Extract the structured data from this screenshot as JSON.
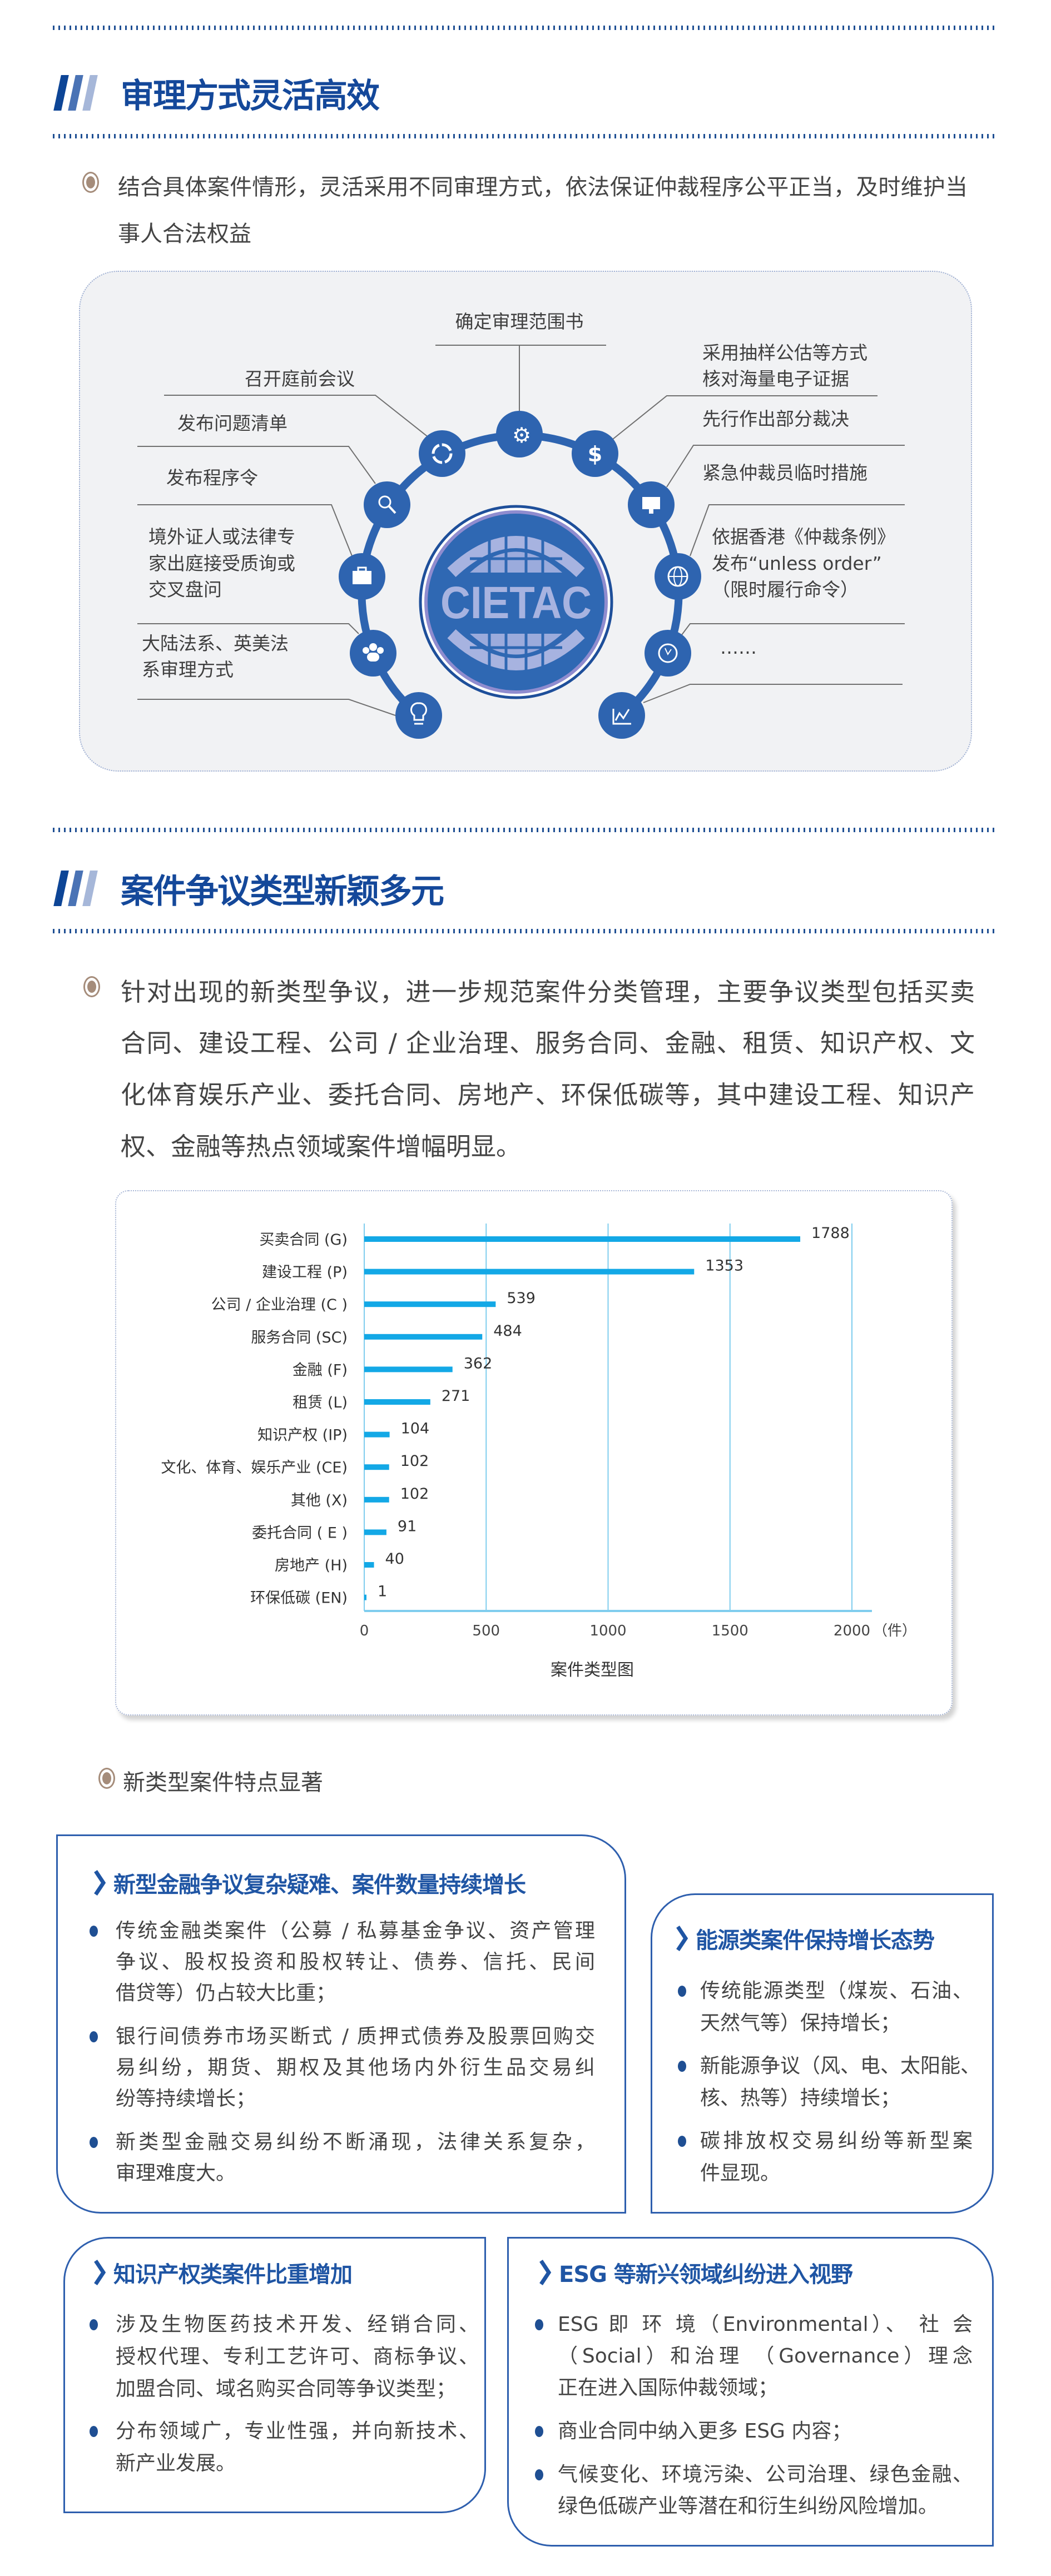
{
  "section1": {
    "title": "审理方式灵活高效",
    "paragraph_lines": [
      "结合具体案件情形，灵活采用不同审理方式，依法保证仲裁程序公平正当，及时维护当",
      "事人合法权益"
    ]
  },
  "diagram": {
    "center_logo": "CIETAC",
    "top_label": "确定审理范围书",
    "left_labels": [
      [
        "召开庭前会议"
      ],
      [
        "发布问题清单"
      ],
      [
        "发布程序令"
      ],
      [
        "境外证人或法律专",
        "家出庭接受质询或",
        "交叉盘问"
      ],
      [
        "大陆法系、英美法",
        "系审理方式"
      ]
    ],
    "right_labels": [
      [
        "采用抽样公估等方式",
        "核对海量电子证据"
      ],
      [
        "先行作出部分裁决"
      ],
      [
        "紧急仲裁员临时措施"
      ],
      [
        "依据香港《仲裁条例》",
        "发布“unless order”",
        "（限时履行命令）"
      ],
      [
        "……"
      ]
    ],
    "node_icons": [
      "lightbulb-icon",
      "people-icon",
      "briefcase-icon",
      "search-icon",
      "refresh-ring-icon",
      "gear-icon",
      "dollar-icon",
      "monitor-icon",
      "globe-icon",
      "clock-icon",
      "line-chart-icon"
    ],
    "colors": {
      "node": "#2e64b0",
      "logo_text": "#a7b3e0",
      "background": "#f1f2f4"
    }
  },
  "section2": {
    "title": "案件争议类型新颖多元",
    "paragraph_lines": [
      "针对出现的新类型争议，进一步规范案件分类管理，主要争议类型包括买卖",
      "合同、建设工程、公司 / 企业治理、服务合同、金融、租赁、知识产权、文",
      "化体育娱乐产业、委托合同、房地产、环保低碳等，其中建设工程、知识产",
      "权、金融等热点领域案件增幅明显。"
    ]
  },
  "chart_data": {
    "type": "bar",
    "orientation": "horizontal",
    "title": "案件类型图",
    "xlabel": "",
    "x_unit": "（件）",
    "xlim": [
      0,
      2000
    ],
    "x_ticks": [
      0,
      500,
      1000,
      1500,
      2000
    ],
    "grid": "vertical",
    "bar_color": "#13a8e6",
    "grid_color": "#7fcdee",
    "categories": [
      "买卖合同 (G)",
      "建设工程 (P)",
      "公司 / 企业治理 (C )",
      "服务合同 (SC)",
      "金融 (F)",
      "租赁 (L)",
      "知识产权 (IP)",
      "文化、体育、娱乐产业 (CE)",
      "其他 (X)",
      "委托合同 ( E )",
      "房地产 (H)",
      "环保低碳 (EN)"
    ],
    "values": [
      1788,
      1353,
      539,
      484,
      362,
      271,
      104,
      102,
      102,
      91,
      40,
      1
    ]
  },
  "features": {
    "intro": "新类型案件特点显著",
    "cards": [
      {
        "title": "新型金融争议复杂疑难、案件数量持续增长",
        "bullets": [
          [
            "传统金融类案件（公募 / 私募基金争议、资产管理",
            "争议、股权投资和股权转让、债券、信托、民间",
            "借贷等）仍占较大比重；"
          ],
          [
            "银行间债券市场买断式 / 质押式债券及股票回购交",
            "易纠纷，期货、期权及其他场内外衍生品交易纠",
            "纷等持续增长；"
          ],
          [
            "新类型金融交易纠纷不断涌现，法律关系复杂，",
            "审理难度大。"
          ]
        ]
      },
      {
        "title": "能源类案件保持增长态势",
        "bullets": [
          [
            "传统能源类型（煤炭、石油、",
            "天然气等）保持增长；"
          ],
          [
            "新能源争议（风、电、太阳能、",
            "核、热等）持续增长；"
          ],
          [
            "碳排放权交易纠纷等新型案",
            "件显现。"
          ]
        ]
      },
      {
        "title": "知识产权类案件比重增加",
        "bullets": [
          [
            "涉及生物医药技术开发、经销合同、",
            "授权代理、专利工艺许可、商标争议、",
            "加盟合同、域名购买合同等争议类型；"
          ],
          [
            "分布领域广，专业性强，并向新技术、",
            "新产业发展。"
          ]
        ]
      },
      {
        "title": "ESG 等新兴领域纠纷进入视野",
        "bullets": [
          [
            "ESG 即 环 境（Environmental）、 社 会",
            "（Social）和治理 （Governance）理念",
            "正在进入国际仲裁领域；"
          ],
          [
            "商业合同中纳入更多 ESG 内容；"
          ],
          [
            "气候变化、环境污染、公司治理、绿色金融、",
            "绿色低碳产业等潜在和衍生纠纷风险增加。"
          ]
        ]
      }
    ]
  }
}
